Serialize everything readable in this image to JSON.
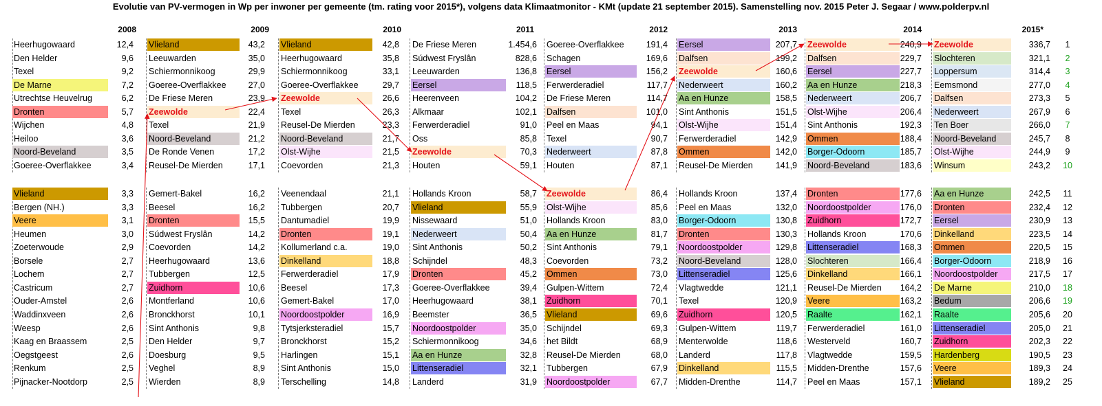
{
  "title": "Evolutie van PV-vermogen in Wp per inwoner per gemeente (tm. rating voor 2015*), volgens data Klimaatmonitor - KMt (update 21 september 2015). Samenstelling nov. 2015 Peter J. Segaar / www.polderpv.nl",
  "colors": {
    "Vlieland": "#cc9900",
    "Dronten": "#ff8a8a",
    "Zeewolde": "#fdecd0",
    "Noord-Beveland": "#d6cfd0",
    "Veere": "#ffbf47",
    "Eersel": "#c9a8e6",
    "Dalfsen": "#fde3d1",
    "Nederweert": "#d9e4f6",
    "Olst-Wijhe": "#fbe5fb",
    "Ommen": "#f08a48",
    "Aa en Hunze": "#a8d08d",
    "Borger-Odoorn": "#8de8f4",
    "Noordoostpolder": "#f6a8f3",
    "Zuidhorn": "#ff4f9a",
    "Littenseradiel": "#8585f3",
    "Dinkelland": "#ffd97a",
    "Raalte": "#55f08e",
    "Slochteren": "#d6e9c8",
    "Loppersum": "#dbe7f4",
    "Eemsmond": "#f4f4f4",
    "De Marne": "#f5f57a",
    "Bedum": "#a8a8a8",
    "Hardenberg": "#d8db14",
    "Winsum": "#ffffc8",
    "Ten Boer": "#e7e7e7"
  },
  "chart_data": {
    "type": "table",
    "years": [
      "2008",
      "2009",
      "2010",
      "2011",
      "2012",
      "2013",
      "2014",
      "2015*"
    ],
    "ranks": [
      "1",
      "2",
      "3",
      "4",
      "5",
      "6",
      "7",
      "8",
      "9",
      "10",
      "11",
      "12",
      "13",
      "14",
      "15",
      "16",
      "17",
      "18",
      "19",
      "20",
      "21",
      "22",
      "23",
      "24",
      "25"
    ],
    "green_ranks": [
      "2",
      "3",
      "4",
      "7",
      "10",
      "18",
      "19"
    ],
    "columns": [
      {
        "year": "2008",
        "rows": [
          [
            "Heerhugowaard",
            "12,4"
          ],
          [
            "Den Helder",
            "9,6"
          ],
          [
            "Texel",
            "9,2"
          ],
          [
            "De Marne",
            "7,2"
          ],
          [
            "Utrechtse Heuvelrug",
            "6,2"
          ],
          [
            "Dronten",
            "5,7"
          ],
          [
            "Wijchen",
            "4,8"
          ],
          [
            "Heiloo",
            "3,6"
          ],
          [
            "Noord-Beveland",
            "3,5"
          ],
          [
            "Goeree-Overflakkee",
            "3,4"
          ],
          [
            "Vlieland",
            "3,3"
          ],
          [
            "Bergen (NH.)",
            "3,3"
          ],
          [
            "Veere",
            "3,1"
          ],
          [
            "Heumen",
            "3,0"
          ],
          [
            "Zoeterwoude",
            "2,9"
          ],
          [
            "Borsele",
            "2,7"
          ],
          [
            "Lochem",
            "2,7"
          ],
          [
            "Castricum",
            "2,7"
          ],
          [
            "Ouder-Amstel",
            "2,6"
          ],
          [
            "Waddinxveen",
            "2,6"
          ],
          [
            "Weesp",
            "2,6"
          ],
          [
            "Kaag en Braassem",
            "2,5"
          ],
          [
            "Oegstgeest",
            "2,6"
          ],
          [
            "Renkum",
            "2,5"
          ],
          [
            "Pijnacker-Nootdorp",
            "2,5"
          ]
        ]
      },
      {
        "year": "2009",
        "rows": [
          [
            "Vlieland",
            "43,2"
          ],
          [
            "Leeuwarden",
            "35,0"
          ],
          [
            "Schiermonnikoog",
            "29,9"
          ],
          [
            "Goeree-Overflakkee",
            "27,0"
          ],
          [
            "De Friese Meren",
            "23,9"
          ],
          [
            "Zeewolde",
            "22,4"
          ],
          [
            "Texel",
            "21,9"
          ],
          [
            "Noord-Beveland",
            "21,2"
          ],
          [
            "De Ronde Venen",
            "17,2"
          ],
          [
            "Reusel-De Mierden",
            "17,1"
          ],
          [
            "Gemert-Bakel",
            "16,2"
          ],
          [
            "Beesel",
            "16,2"
          ],
          [
            "Dronten",
            "15,5"
          ],
          [
            "Súdwest Fryslân",
            "14,2"
          ],
          [
            "Coevorden",
            "14,2"
          ],
          [
            "Heerhugowaard",
            "13,6"
          ],
          [
            "Tubbergen",
            "12,5"
          ],
          [
            "Zuidhorn",
            "10,6"
          ],
          [
            "Montferland",
            "10,6"
          ],
          [
            "Bronckhorst",
            "10,1"
          ],
          [
            "Sint Anthonis",
            "9,8"
          ],
          [
            "Den Helder",
            "9,7"
          ],
          [
            "Doesburg",
            "9,5"
          ],
          [
            "Veghel",
            "8,9"
          ],
          [
            "Wierden",
            "8,9"
          ]
        ]
      },
      {
        "year": "2010",
        "rows": [
          [
            "Vlieland",
            "42,8"
          ],
          [
            "Heerhugowaard",
            "35,8"
          ],
          [
            "Schiermonnikoog",
            "33,1"
          ],
          [
            "Goeree-Overflakkee",
            "29,7"
          ],
          [
            "Zeewolde",
            "26,6"
          ],
          [
            "Texel",
            "26,3"
          ],
          [
            "Reusel-De Mierden",
            "23,3"
          ],
          [
            "Noord-Beveland",
            "21,7"
          ],
          [
            "Olst-Wijhe",
            "21,5"
          ],
          [
            "Coevorden",
            "21,3"
          ],
          [
            "Veenendaal",
            "21,1"
          ],
          [
            "Tubbergen",
            "20,7"
          ],
          [
            "Dantumadiel",
            "19,9"
          ],
          [
            "Dronten",
            "19,1"
          ],
          [
            "Kollumerland c.a.",
            "19,0"
          ],
          [
            "Dinkelland",
            "18,8"
          ],
          [
            "Ferwerderadiel",
            "17,9"
          ],
          [
            "Beesel",
            "17,3"
          ],
          [
            "Gemert-Bakel",
            "17,0"
          ],
          [
            "Noordoostpolder",
            "16,9"
          ],
          [
            "Tytsjerksteradiel",
            "15,7"
          ],
          [
            "Bronckhorst",
            "15,2"
          ],
          [
            "Harlingen",
            "15,1"
          ],
          [
            "Sint Anthonis",
            "15,0"
          ],
          [
            "Terschelling",
            "14,8"
          ]
        ]
      },
      {
        "year": "2011",
        "rows": [
          [
            "De Friese Meren",
            "1.454,6"
          ],
          [
            "Súdwest Fryslân",
            "828,6"
          ],
          [
            "Leeuwarden",
            "136,8"
          ],
          [
            "Eersel",
            "118,5"
          ],
          [
            "Heerenveen",
            "104,2"
          ],
          [
            "Alkmaar",
            "102,1"
          ],
          [
            "Ferwerderadiel",
            "91,0"
          ],
          [
            "Oss",
            "85,8"
          ],
          [
            "Zeewolde",
            "70,3"
          ],
          [
            "Houten",
            "59,1"
          ],
          [
            "Hollands Kroon",
            "58,7"
          ],
          [
            "Vlieland",
            "55,9"
          ],
          [
            "Nissewaard",
            "51,0"
          ],
          [
            "Nederweert",
            "50,4"
          ],
          [
            "Sint Anthonis",
            "50,2"
          ],
          [
            "Schijndel",
            "48,3"
          ],
          [
            "Dronten",
            "45,2"
          ],
          [
            "Goeree-Overflakkee",
            "39,4"
          ],
          [
            "Heerhugowaard",
            "38,1"
          ],
          [
            "Beemster",
            "36,5"
          ],
          [
            "Noordoostpolder",
            "35,0"
          ],
          [
            "Schiermonnikoog",
            "34,6"
          ],
          [
            "Aa en Hunze",
            "32,8"
          ],
          [
            "Littenseradiel",
            "32,1"
          ],
          [
            "Landerd",
            "31,9"
          ]
        ]
      },
      {
        "year": "2012",
        "rows": [
          [
            "Goeree-Overflakkee",
            "191,4"
          ],
          [
            "Schagen",
            "169,6"
          ],
          [
            "Eersel",
            "156,2"
          ],
          [
            "Ferwerderadiel",
            "117,7"
          ],
          [
            "De Friese Meren",
            "114,7"
          ],
          [
            "Dalfsen",
            "101,0"
          ],
          [
            "Peel en Maas",
            "94,1"
          ],
          [
            "Texel",
            "90,7"
          ],
          [
            "Nederweert",
            "87,8"
          ],
          [
            "Houten",
            "87,1"
          ],
          [
            "Zeewolde",
            "86,4"
          ],
          [
            "Olst-Wijhe",
            "85,6"
          ],
          [
            "Hollands Kroon",
            "83,0"
          ],
          [
            "Aa en Hunze",
            "81,7"
          ],
          [
            "Sint Anthonis",
            "79,1"
          ],
          [
            "Coevorden",
            "73,2"
          ],
          [
            "Ommen",
            "73,0"
          ],
          [
            "Gulpen-Wittem",
            "72,4"
          ],
          [
            "Zuidhorn",
            "70,1"
          ],
          [
            "Vlieland",
            "69,6"
          ],
          [
            "Schijndel",
            "69,3"
          ],
          [
            "het Bildt",
            "68,9"
          ],
          [
            "Reusel-De Mierden",
            "68,0"
          ],
          [
            "Tubbergen",
            "67,9"
          ],
          [
            "Noordoostpolder",
            "67,7"
          ]
        ]
      },
      {
        "year": "2013",
        "rows": [
          [
            "Eersel",
            "207,7"
          ],
          [
            "Dalfsen",
            "199,2"
          ],
          [
            "Zeewolde",
            "160,6"
          ],
          [
            "Nederweert",
            "160,2"
          ],
          [
            "Aa en Hunze",
            "158,5"
          ],
          [
            "Sint Anthonis",
            "151,5"
          ],
          [
            "Olst-Wijhe",
            "151,4"
          ],
          [
            "Ferwerderadiel",
            "142,9"
          ],
          [
            "Ommen",
            "142,0"
          ],
          [
            "Reusel-De Mierden",
            "141,9"
          ],
          [
            "Hollands Kroon",
            "137,4"
          ],
          [
            "Peel en Maas",
            "132,0"
          ],
          [
            "Borger-Odoorn",
            "130,8"
          ],
          [
            "Dronten",
            "130,3"
          ],
          [
            "Noordoostpolder",
            "129,8"
          ],
          [
            "Noord-Beveland",
            "128,0"
          ],
          [
            "Littenseradiel",
            "125,6"
          ],
          [
            "Vlagtwedde",
            "121,1"
          ],
          [
            "Texel",
            "120,9"
          ],
          [
            "Zuidhorn",
            "120,5"
          ],
          [
            "Gulpen-Wittem",
            "119,7"
          ],
          [
            "Menterwolde",
            "118,6"
          ],
          [
            "Landerd",
            "117,8"
          ],
          [
            "Dinkelland",
            "115,5"
          ],
          [
            "Midden-Drenthe",
            "114,7"
          ]
        ]
      },
      {
        "year": "2014",
        "rows": [
          [
            "Zeewolde",
            "240,9"
          ],
          [
            "Dalfsen",
            "229,7"
          ],
          [
            "Eersel",
            "227,7"
          ],
          [
            "Aa en Hunze",
            "218,3"
          ],
          [
            "Nederweert",
            "206,7"
          ],
          [
            "Olst-Wijhe",
            "206,4"
          ],
          [
            "Sint Anthonis",
            "192,3"
          ],
          [
            "Ommen",
            "188,4"
          ],
          [
            "Borger-Odoorn",
            "185,7"
          ],
          [
            "Noord-Beveland",
            "183,6"
          ],
          [
            "Dronten",
            "177,6"
          ],
          [
            "Noordoostpolder",
            "176,0"
          ],
          [
            "Zuidhorn",
            "172,7"
          ],
          [
            "Hollands Kroon",
            "170,6"
          ],
          [
            "Littenseradiel",
            "168,3"
          ],
          [
            "Slochteren",
            "166,4"
          ],
          [
            "Dinkelland",
            "166,1"
          ],
          [
            "Reusel-De Mierden",
            "164,2"
          ],
          [
            "Veere",
            "163,2"
          ],
          [
            "Raalte",
            "162,1"
          ],
          [
            "Ferwerderadiel",
            "161,0"
          ],
          [
            "Westerveld",
            "160,7"
          ],
          [
            "Vlagtwedde",
            "159,5"
          ],
          [
            "Midden-Drenthe",
            "157,6"
          ],
          [
            "Peel en Maas",
            "157,1"
          ]
        ]
      },
      {
        "year": "2015*",
        "rows": [
          [
            "Zeewolde",
            "336,7"
          ],
          [
            "Slochteren",
            "321,1"
          ],
          [
            "Loppersum",
            "314,4"
          ],
          [
            "Eemsmond",
            "277,0"
          ],
          [
            "Dalfsen",
            "273,3"
          ],
          [
            "Nederweert",
            "267,9"
          ],
          [
            "Ten Boer",
            "266,0"
          ],
          [
            "Noord-Beveland",
            "245,7"
          ],
          [
            "Olst-Wijhe",
            "244,9"
          ],
          [
            "Winsum",
            "243,2"
          ],
          [
            "Aa en Hunze",
            "242,5"
          ],
          [
            "Dronten",
            "232,4"
          ],
          [
            "Eersel",
            "230,9"
          ],
          [
            "Dinkelland",
            "223,5"
          ],
          [
            "Ommen",
            "220,5"
          ],
          [
            "Borger-Odoorn",
            "218,9"
          ],
          [
            "Noordoostpolder",
            "217,5"
          ],
          [
            "De Marne",
            "210,0"
          ],
          [
            "Bedum",
            "206,6"
          ],
          [
            "Raalte",
            "205,6"
          ],
          [
            "Littenseradiel",
            "205,0"
          ],
          [
            "Zuidhorn",
            "202,3"
          ],
          [
            "Hardenberg",
            "190,5"
          ],
          [
            "Veere",
            "189,3"
          ],
          [
            "Vlieland",
            "189,2"
          ]
        ]
      }
    ],
    "highlight_text": "Zeewolde"
  }
}
